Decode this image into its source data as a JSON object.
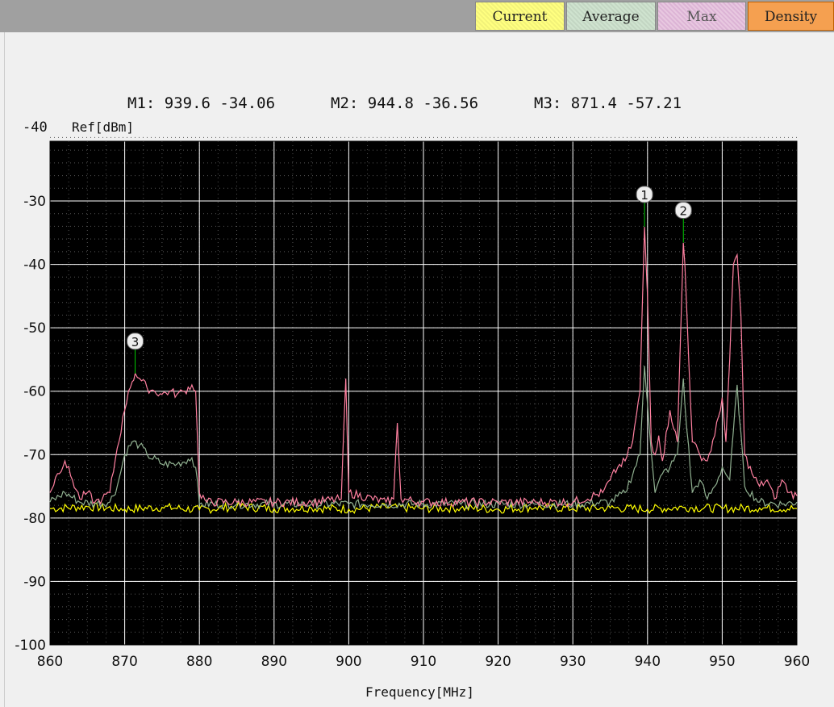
{
  "tabs": [
    {
      "label": "Current"
    },
    {
      "label": "Average"
    },
    {
      "label": "Max"
    },
    {
      "label": "Density"
    }
  ],
  "readout": {
    "m1": "M1: 939.6 -34.06",
    "m2": "M2: 944.8 -36.56",
    "m3": "M3: 871.4 -57.21"
  },
  "axis": {
    "ref_top": "-40",
    "ref_unit": "Ref[dBm]",
    "xlabel": "Frequency[MHz]"
  },
  "colors": {
    "plot_bg": "#000000",
    "grid": "#ffffff",
    "current": "#ffff00",
    "average": "#90b090",
    "max": "#ff80a0",
    "marker_line": "#00cc00"
  },
  "chart_data": {
    "type": "line",
    "title": "",
    "xlabel": "Frequency[MHz]",
    "ylabel": "Ref[dBm]",
    "xlim": [
      860,
      960
    ],
    "ylim": [
      -100,
      -20
    ],
    "x_ticks": [
      "860",
      "870",
      "880",
      "890",
      "900",
      "910",
      "920",
      "930",
      "940",
      "950",
      "960"
    ],
    "y_ticks": [
      "-30",
      "-40",
      "-50",
      "-60",
      "-70",
      "-80",
      "-90",
      "-100"
    ],
    "grid": true,
    "series": [
      {
        "name": "Current",
        "color": "#ffff00",
        "x": [
          860,
          865,
          870,
          875,
          880,
          885,
          890,
          895,
          900,
          905,
          910,
          915,
          920,
          925,
          930,
          935,
          940,
          945,
          950,
          955,
          960
        ],
        "values": [
          -78.5,
          -78.2,
          -78.6,
          -78.3,
          -78.7,
          -78.2,
          -78.5,
          -78.4,
          -78.6,
          -78.3,
          -78.5,
          -78.4,
          -78.6,
          -78.3,
          -78.5,
          -78.4,
          -78.6,
          -78.3,
          -78.5,
          -78.4,
          -78.5
        ]
      },
      {
        "name": "Average",
        "color": "#90b090",
        "x": [
          860,
          862,
          864,
          866,
          868,
          869,
          870,
          871,
          872,
          873,
          875,
          877,
          879,
          879.5,
          880,
          885,
          890,
          895,
          900,
          905,
          910,
          915,
          920,
          925,
          930,
          935,
          937,
          939,
          939.6,
          940,
          941,
          942,
          943,
          944,
          944.8,
          945,
          946,
          947,
          948,
          949,
          950,
          951,
          952,
          953,
          955,
          958,
          960
        ],
        "values": [
          -77.5,
          -76,
          -77.5,
          -77.7,
          -77.5,
          -75,
          -70,
          -68,
          -68.5,
          -70,
          -71.5,
          -71.5,
          -70.5,
          -72,
          -77.8,
          -77.8,
          -77.8,
          -77.8,
          -77.8,
          -77.8,
          -77.8,
          -77.8,
          -77.8,
          -77.8,
          -77.8,
          -77.5,
          -76,
          -70,
          -56,
          -62,
          -76,
          -73,
          -72,
          -70,
          -58,
          -62,
          -76,
          -74,
          -77,
          -75,
          -72,
          -74,
          -59,
          -75,
          -77.5,
          -77.8,
          -77.5
        ]
      },
      {
        "name": "Max",
        "color": "#ff80a0",
        "x": [
          860,
          861,
          862,
          863,
          864,
          865,
          866,
          867,
          868,
          869,
          870,
          870.5,
          871,
          871.4,
          872,
          873,
          874,
          875,
          876,
          877,
          878,
          879,
          879.5,
          880,
          881,
          885,
          890,
          895,
          899,
          899.6,
          900,
          905,
          906,
          906.5,
          907,
          910,
          915,
          920,
          925,
          930,
          934,
          935,
          936,
          937,
          938,
          939,
          939.6,
          940,
          940.5,
          941,
          941.5,
          942,
          943,
          944,
          944.8,
          945,
          946,
          947,
          948,
          949,
          950,
          950.5,
          951,
          951.5,
          952,
          952.5,
          953,
          954,
          955,
          956,
          957,
          958,
          959,
          960
        ],
        "values": [
          -76,
          -73,
          -71,
          -74,
          -77,
          -76,
          -77.5,
          -77,
          -76,
          -69,
          -63,
          -60,
          -58.5,
          -57.2,
          -58,
          -59.5,
          -60,
          -60.5,
          -60,
          -60.5,
          -60,
          -59,
          -60,
          -76,
          -77.5,
          -77.5,
          -77.5,
          -77.5,
          -77,
          -58,
          -76,
          -77.5,
          -77,
          -65,
          -77,
          -77.5,
          -77.5,
          -77.5,
          -77.5,
          -77.5,
          -76,
          -74,
          -72,
          -71,
          -68,
          -60,
          -34.1,
          -45,
          -68,
          -70,
          -67,
          -71,
          -63,
          -68,
          -36.6,
          -40,
          -68,
          -70,
          -71,
          -67,
          -61,
          -68,
          -55,
          -40,
          -38.5,
          -48,
          -70,
          -73,
          -75,
          -74,
          -77,
          -74,
          -76,
          -76.5
        ]
      }
    ],
    "markers": [
      {
        "label": "1",
        "x": 939.6,
        "y": -34.06
      },
      {
        "label": "2",
        "x": 944.8,
        "y": -36.56
      },
      {
        "label": "3",
        "x": 871.4,
        "y": -57.21
      }
    ]
  }
}
